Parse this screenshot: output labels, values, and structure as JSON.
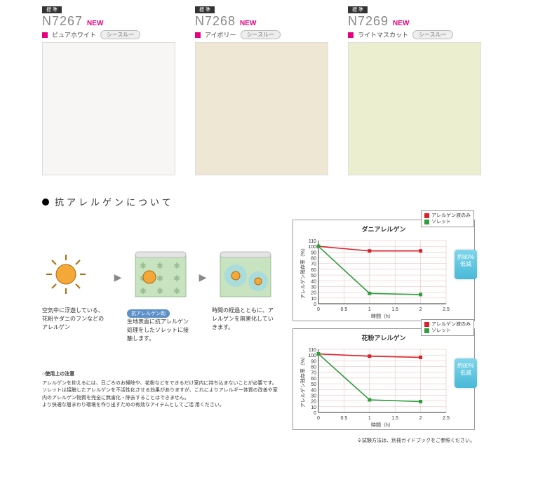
{
  "swatches": [
    {
      "code": "N7267",
      "new": "NEW",
      "sq_color": "#e6007e",
      "name": "ピュアホワイト",
      "tag": "シースルー",
      "bg": "#f7f6f4",
      "top_label": "標 準"
    },
    {
      "code": "N7268",
      "new": "NEW",
      "sq_color": "#e6007e",
      "name": "アイボリー",
      "tag": "シースルー",
      "bg": "#eee7d4",
      "top_label": "標 準"
    },
    {
      "code": "N7269",
      "new": "NEW",
      "sq_color": "#e6007e",
      "name": "ライトマスカット",
      "tag": "シースルー",
      "bg": "#eceed0",
      "top_label": "標 準"
    }
  ],
  "section": {
    "title": "抗アレルゲンについて"
  },
  "diagram": {
    "steps": [
      {
        "caption": "空気中に浮遊している、花粉やダニのフンなどのアレルゲン",
        "pill": ""
      },
      {
        "caption": "生地表面に抗アレルゲン処理をしたソレットに接触します。",
        "pill": "抗アレルゲン剤"
      },
      {
        "caption": "時間の経過とともに、アレルゲンを無害化していきます。",
        "pill": ""
      }
    ],
    "arrow": "▶"
  },
  "charts": [
    {
      "title": "ダニアレルゲン",
      "legend": [
        {
          "label": "アレルゲン液のみ",
          "color": "#d8232a"
        },
        {
          "label": "ソレット",
          "color": "#2e9e3f"
        }
      ],
      "y_label": "アレルゲン残存率（%）",
      "x_label": "時間（h）",
      "ylim": [
        0,
        110
      ],
      "ytick_step": 10,
      "xlim": [
        0,
        2.5
      ],
      "xtick_step": 0.5,
      "series": [
        {
          "color": "#d8232a",
          "points": [
            [
              0,
              100
            ],
            [
              1,
              92
            ],
            [
              2,
              92
            ]
          ]
        },
        {
          "color": "#2e9e3f",
          "points": [
            [
              0,
              100
            ],
            [
              1,
              18
            ],
            [
              2,
              16
            ]
          ]
        }
      ],
      "badge": "約80%\n低減",
      "grid_color": "#e5b8b8",
      "axis_color": "#333"
    },
    {
      "title": "花粉アレルゲン",
      "legend": [
        {
          "label": "アレルゲン液のみ",
          "color": "#d8232a"
        },
        {
          "label": "ソレット",
          "color": "#2e9e3f"
        }
      ],
      "y_label": "アレルゲン残存率（%）",
      "x_label": "時間（h）",
      "ylim": [
        0,
        110
      ],
      "ytick_step": 10,
      "xlim": [
        0,
        2.5
      ],
      "xtick_step": 0.5,
      "series": [
        {
          "color": "#d8232a",
          "points": [
            [
              0,
              102
            ],
            [
              1,
              98
            ],
            [
              2,
              96
            ]
          ]
        },
        {
          "color": "#2e9e3f",
          "points": [
            [
              0,
              102
            ],
            [
              1,
              22
            ],
            [
              2,
              19
            ]
          ]
        }
      ],
      "badge": "約80%\n低減",
      "grid_color": "#e5b8b8",
      "axis_color": "#333"
    }
  ],
  "notes": {
    "title": "○使用上の注意",
    "lines": [
      "アレルゲンを抑えるには、日ごろのお掃除や、花粉などをできるだけ室内に持ち込まないことが必要です。",
      "ソレットは接触したアレルゲンを不活性化させる効果がありますが、これによりアレルギー体質の改善や室内のアレルゲン物質を完全に無害化・除去することはできません。",
      "より快適な居まわり環境を作り出すための有効なアイテムとしてご活 用ください。"
    ]
  },
  "footnote": "※試験方法は、別冊ガイドブックをご参照ください。"
}
